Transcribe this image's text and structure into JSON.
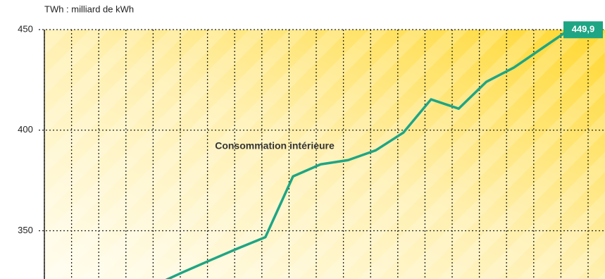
{
  "chart_data": {
    "type": "line",
    "ylabel": "TWh : milliard de kWh",
    "annotation": "Consommation intérieure",
    "categories": [
      null,
      null,
      null,
      null,
      null,
      null,
      null,
      null,
      null,
      null,
      null,
      null,
      null,
      null,
      null,
      null
    ],
    "series": [
      {
        "name": null,
        "color": "#1ea584",
        "values": [
          323,
          329.3,
          335.3,
          341.2,
          346.8,
          377.0,
          383.0,
          385.1,
          390.0,
          398.8,
          415.3,
          410.7,
          424.0,
          431.1,
          440.5,
          449.9
        ],
        "value_labels": [
          null,
          null,
          null,
          null,
          null,
          null,
          null,
          null,
          null,
          null,
          null,
          null,
          null,
          null,
          null,
          "449,9"
        ]
      }
    ],
    "ylim": [
      326,
      450
    ],
    "yticks": [
      350,
      400,
      450
    ],
    "grid": true
  }
}
